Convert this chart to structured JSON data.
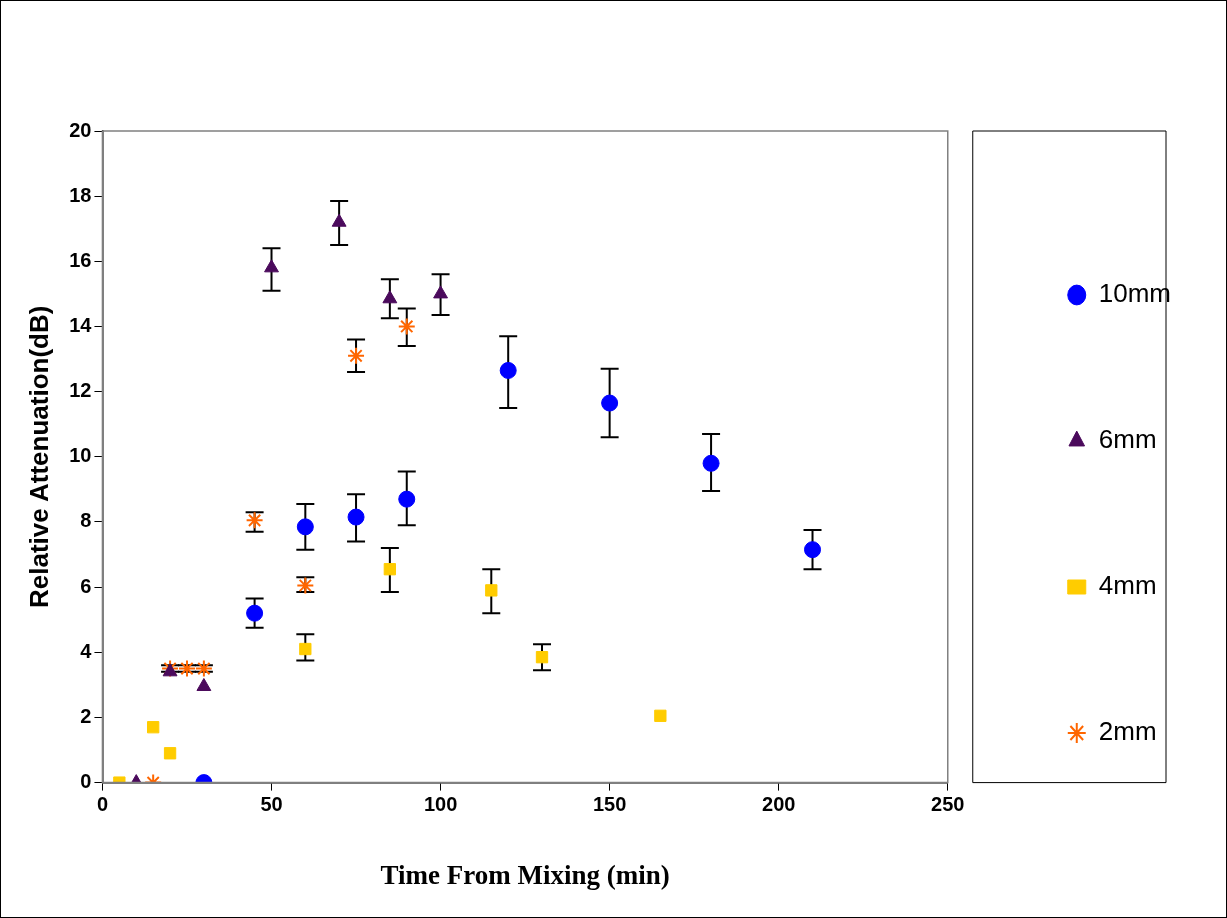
{
  "chart_data": {
    "type": "scatter",
    "xlabel": "Time From Mixing (min)",
    "ylabel": "Relative Attenuation(dB)",
    "xlim": [
      0,
      250
    ],
    "xticks": [
      0,
      50,
      100,
      150,
      200,
      250
    ],
    "ylim": [
      0,
      20
    ],
    "yticks": [
      0,
      2,
      4,
      6,
      8,
      10,
      12,
      14,
      16,
      18,
      20
    ],
    "legend": "right",
    "series": [
      {
        "name": "10mm",
        "color": "#0000ff",
        "marker": "circle",
        "x": [
          30,
          45,
          60,
          75,
          90,
          120,
          150,
          180,
          210
        ],
        "values": [
          0,
          5.2,
          7.85,
          8.15,
          8.7,
          12.65,
          11.65,
          9.8,
          7.15
        ],
        "errors": [
          null,
          [
            4.75,
            5.65
          ],
          [
            7.15,
            8.55
          ],
          [
            7.4,
            8.85
          ],
          [
            7.9,
            9.55
          ],
          [
            11.5,
            13.7
          ],
          [
            10.6,
            12.7
          ],
          [
            8.95,
            10.7
          ],
          [
            6.55,
            7.75
          ]
        ]
      },
      {
        "name": "6mm",
        "color": "#4b0a5c",
        "marker": "triangle",
        "x": [
          10,
          20,
          30,
          50,
          70,
          85,
          100
        ],
        "values": [
          0,
          3.4,
          2.95,
          15.8,
          17.2,
          14.85,
          15.0
        ],
        "errors": [
          null,
          null,
          null,
          [
            15.1,
            16.4
          ],
          [
            16.5,
            17.85
          ],
          [
            14.25,
            15.45
          ],
          [
            14.35,
            15.6
          ]
        ]
      },
      {
        "name": "4mm",
        "color": "#ffcc00",
        "marker": "square",
        "x": [
          5,
          15,
          20,
          60,
          85,
          115,
          130,
          165
        ],
        "values": [
          0,
          1.7,
          0.9,
          4.1,
          6.55,
          5.9,
          3.85,
          2.05
        ],
        "errors": [
          null,
          null,
          null,
          [
            3.75,
            4.55
          ],
          [
            5.85,
            7.2
          ],
          [
            5.2,
            6.55
          ],
          [
            3.45,
            4.25
          ],
          null
        ]
      },
      {
        "name": "2mm",
        "color": "#ff6600",
        "marker": "cross",
        "x": [
          15,
          20,
          25,
          30,
          45,
          60,
          75,
          90
        ],
        "values": [
          0,
          3.5,
          3.5,
          3.5,
          8.05,
          6.05,
          13.1,
          14.0
        ],
        "errors": [
          null,
          [
            3.4,
            3.6
          ],
          [
            3.4,
            3.6
          ],
          [
            3.4,
            3.6
          ],
          [
            7.7,
            8.3
          ],
          [
            5.85,
            6.3
          ],
          [
            12.6,
            13.6
          ],
          [
            13.4,
            14.55
          ]
        ]
      }
    ]
  }
}
